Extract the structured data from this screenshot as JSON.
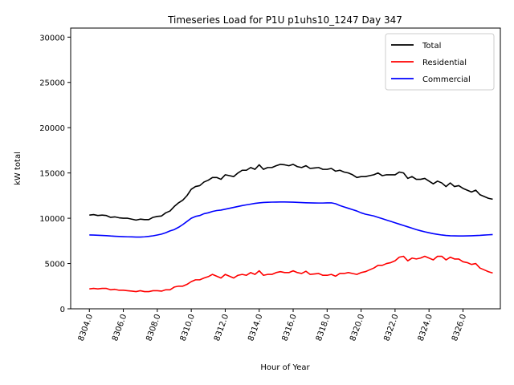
{
  "chart_data": {
    "type": "line",
    "title": "Timeseries Load for P1U p1uhs10_1247  Day 347",
    "xlabel": "Hour of Year",
    "ylabel": "kW total",
    "xlim": [
      8302.9,
      8328.2
    ],
    "ylim": [
      0,
      31000
    ],
    "x_ticks": [
      8304,
      8306,
      8308,
      8310,
      8312,
      8314,
      8316,
      8318,
      8320,
      8322,
      8324,
      8326
    ],
    "x_tick_labels": [
      "8304.0",
      "8306.0",
      "8308.0",
      "8310.0",
      "8312.0",
      "8314.0",
      "8316.0",
      "8318.0",
      "8320.0",
      "8322.0",
      "8324.0",
      "8326.0"
    ],
    "y_ticks": [
      0,
      5000,
      10000,
      15000,
      20000,
      25000,
      30000
    ],
    "y_tick_labels": [
      "0",
      "5000",
      "10000",
      "15000",
      "20000",
      "25000",
      "30000"
    ],
    "legend_position": "top-right",
    "x": [
      8304.0,
      8304.25,
      8304.5,
      8304.75,
      8305.0,
      8305.25,
      8305.5,
      8305.75,
      8306.0,
      8306.25,
      8306.5,
      8306.75,
      8307.0,
      8307.25,
      8307.5,
      8307.75,
      8308.0,
      8308.25,
      8308.5,
      8308.75,
      8309.0,
      8309.25,
      8309.5,
      8309.75,
      8310.0,
      8310.25,
      8310.5,
      8310.75,
      8311.0,
      8311.25,
      8311.5,
      8311.75,
      8312.0,
      8312.25,
      8312.5,
      8312.75,
      8313.0,
      8313.25,
      8313.5,
      8313.75,
      8314.0,
      8314.25,
      8314.5,
      8314.75,
      8315.0,
      8315.25,
      8315.5,
      8315.75,
      8316.0,
      8316.25,
      8316.5,
      8316.75,
      8317.0,
      8317.25,
      8317.5,
      8317.75,
      8318.0,
      8318.25,
      8318.5,
      8318.75,
      8319.0,
      8319.25,
      8319.5,
      8319.75,
      8320.0,
      8320.25,
      8320.5,
      8320.75,
      8321.0,
      8321.25,
      8321.5,
      8321.75,
      8322.0,
      8322.25,
      8322.5,
      8322.75,
      8323.0,
      8323.25,
      8323.5,
      8323.75,
      8324.0,
      8324.25,
      8324.5,
      8324.75,
      8325.0,
      8325.25,
      8325.5,
      8325.75,
      8326.0,
      8326.25,
      8326.5,
      8326.75,
      8327.0,
      8327.25,
      8327.5,
      8327.75
    ],
    "series": [
      {
        "name": "Total",
        "color": "#000000",
        "values": [
          10350,
          10400,
          10300,
          10350,
          10300,
          10100,
          10150,
          10050,
          10000,
          10000,
          9900,
          9800,
          9900,
          9850,
          9850,
          10100,
          10200,
          10250,
          10600,
          10800,
          11300,
          11700,
          12000,
          12500,
          13200,
          13500,
          13600,
          14000,
          14200,
          14500,
          14500,
          14300,
          14800,
          14700,
          14600,
          15000,
          15300,
          15300,
          15600,
          15400,
          15900,
          15400,
          15600,
          15600,
          15800,
          15950,
          15900,
          15800,
          15950,
          15700,
          15600,
          15800,
          15500,
          15550,
          15600,
          15400,
          15400,
          15500,
          15200,
          15300,
          15100,
          15000,
          14800,
          14500,
          14600,
          14600,
          14700,
          14800,
          15000,
          14700,
          14800,
          14800,
          14800,
          15100,
          15000,
          14400,
          14600,
          14300,
          14300,
          14400,
          14100,
          13800,
          14100,
          13900,
          13500,
          13900,
          13500,
          13600,
          13300,
          13100,
          12900,
          13100,
          12600,
          12400,
          12200,
          12100
        ]
      },
      {
        "name": "Residential",
        "color": "#ff0000",
        "values": [
          2200,
          2250,
          2200,
          2250,
          2250,
          2100,
          2150,
          2050,
          2050,
          2000,
          1950,
          1900,
          2000,
          1900,
          1900,
          2000,
          2000,
          1950,
          2100,
          2100,
          2400,
          2500,
          2500,
          2700,
          3000,
          3200,
          3200,
          3400,
          3550,
          3800,
          3600,
          3400,
          3800,
          3600,
          3400,
          3700,
          3800,
          3700,
          4000,
          3800,
          4200,
          3700,
          3800,
          3800,
          4000,
          4100,
          4000,
          4000,
          4200,
          4000,
          3900,
          4150,
          3800,
          3850,
          3900,
          3700,
          3700,
          3800,
          3600,
          3900,
          3900,
          4000,
          3900,
          3800,
          4000,
          4100,
          4300,
          4500,
          4800,
          4800,
          5000,
          5100,
          5300,
          5700,
          5800,
          5300,
          5600,
          5500,
          5600,
          5800,
          5600,
          5400,
          5800,
          5800,
          5400,
          5700,
          5500,
          5500,
          5200,
          5100,
          4900,
          5000,
          4500,
          4300,
          4100,
          3950
        ]
      },
      {
        "name": "Commercial",
        "color": "#0000ff",
        "values": [
          8150,
          8140,
          8120,
          8100,
          8080,
          8040,
          8010,
          7990,
          7970,
          7950,
          7940,
          7920,
          7920,
          7950,
          8000,
          8060,
          8150,
          8250,
          8400,
          8600,
          8750,
          9000,
          9300,
          9650,
          10000,
          10200,
          10300,
          10500,
          10600,
          10750,
          10850,
          10900,
          11000,
          11100,
          11200,
          11300,
          11400,
          11480,
          11560,
          11640,
          11700,
          11740,
          11760,
          11780,
          11790,
          11800,
          11800,
          11790,
          11770,
          11750,
          11730,
          11710,
          11700,
          11690,
          11680,
          11680,
          11700,
          11700,
          11600,
          11400,
          11250,
          11100,
          10950,
          10800,
          10600,
          10450,
          10350,
          10250,
          10100,
          9950,
          9800,
          9650,
          9500,
          9350,
          9200,
          9050,
          8900,
          8750,
          8620,
          8500,
          8400,
          8300,
          8220,
          8150,
          8100,
          8070,
          8050,
          8040,
          8040,
          8050,
          8070,
          8090,
          8110,
          8140,
          8170,
          8200
        ]
      }
    ]
  }
}
